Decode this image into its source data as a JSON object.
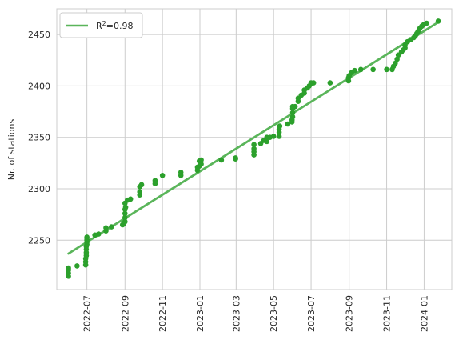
{
  "chart_data": {
    "type": "scatter",
    "title": "",
    "xlabel": "",
    "ylabel": "Nr. of stations",
    "x_axis_type": "date",
    "xlim": [
      "2022-05-13",
      "2024-02-15"
    ],
    "ylim": [
      2202,
      2475
    ],
    "x_ticks": [
      "2022-07",
      "2022-09",
      "2022-11",
      "2023-01",
      "2023-03",
      "2023-05",
      "2023-07",
      "2023-09",
      "2023-11",
      "2024-01"
    ],
    "y_ticks": [
      2250,
      2300,
      2350,
      2400,
      2450
    ],
    "grid": true,
    "legend_position": "top-left",
    "colors": {
      "points": "#2ca02c",
      "fit": "#5ab55a",
      "grid": "#cccccc",
      "axes": "#cccccc"
    },
    "series": [
      {
        "kind": "scatter",
        "x": [
          "2022-06-01",
          "2022-06-01",
          "2022-06-01",
          "2022-06-01",
          "2022-06-15",
          "2022-06-29",
          "2022-06-29",
          "2022-06-29",
          "2022-06-30",
          "2022-06-30",
          "2022-06-30",
          "2022-06-30",
          "2022-07-01",
          "2022-07-01",
          "2022-07-01",
          "2022-07-01",
          "2022-07-01",
          "2022-07-14",
          "2022-07-20",
          "2022-08-01",
          "2022-08-01",
          "2022-08-10",
          "2022-08-28",
          "2022-08-30",
          "2022-09-01",
          "2022-09-01",
          "2022-09-01",
          "2022-09-01",
          "2022-09-01",
          "2022-09-02",
          "2022-09-05",
          "2022-09-10",
          "2022-09-25",
          "2022-09-25",
          "2022-09-25",
          "2022-09-28",
          "2022-10-20",
          "2022-10-20",
          "2022-11-01",
          "2022-12-01",
          "2022-12-01",
          "2022-12-28",
          "2022-12-28",
          "2022-12-31",
          "2022-12-31",
          "2023-01-03",
          "2023-01-03",
          "2023-02-05",
          "2023-02-28",
          "2023-02-28",
          "2023-03-30",
          "2023-03-30",
          "2023-03-30",
          "2023-03-30",
          "2023-04-10",
          "2023-04-15",
          "2023-04-20",
          "2023-04-20",
          "2023-04-25",
          "2023-05-01",
          "2023-05-10",
          "2023-05-10",
          "2023-05-10",
          "2023-05-11",
          "2023-05-24",
          "2023-05-31",
          "2023-05-31",
          "2023-06-01",
          "2023-06-01",
          "2023-06-01",
          "2023-06-01",
          "2023-06-05",
          "2023-06-10",
          "2023-06-10",
          "2023-06-15",
          "2023-06-20",
          "2023-06-20",
          "2023-06-25",
          "2023-06-28",
          "2023-07-01",
          "2023-07-01",
          "2023-07-05",
          "2023-08-01",
          "2023-08-31",
          "2023-08-31",
          "2023-09-01",
          "2023-09-05",
          "2023-09-10",
          "2023-09-20",
          "2023-10-10",
          "2023-11-01",
          "2023-11-10",
          "2023-11-12",
          "2023-11-15",
          "2023-11-18",
          "2023-11-20",
          "2023-11-25",
          "2023-11-28",
          "2023-12-01",
          "2023-12-01",
          "2023-12-05",
          "2023-12-10",
          "2023-12-15",
          "2023-12-18",
          "2023-12-20",
          "2023-12-22",
          "2023-12-25",
          "2023-12-28",
          "2023-12-30",
          "2024-01-01",
          "2024-01-05",
          "2024-01-24"
        ],
        "y": [
          2215,
          2218,
          2221,
          2223,
          2225,
          2226,
          2229,
          2232,
          2235,
          2238,
          2241,
          2244,
          2246,
          2248,
          2250,
          2251,
          2253,
          2255,
          2256,
          2259,
          2262,
          2263,
          2265,
          2266,
          2268,
          2272,
          2276,
          2280,
          2286,
          2282,
          2289,
          2290,
          2294,
          2297,
          2302,
          2304,
          2305,
          2308,
          2313,
          2313,
          2316,
          2318,
          2321,
          2322,
          2327,
          2324,
          2328,
          2328,
          2329,
          2330,
          2333,
          2336,
          2339,
          2343,
          2344,
          2347,
          2350,
          2346,
          2350,
          2351,
          2351,
          2355,
          2358,
          2361,
          2363,
          2365,
          2367,
          2370,
          2374,
          2378,
          2380,
          2380,
          2385,
          2388,
          2391,
          2393,
          2396,
          2398,
          2400,
          2402,
          2403,
          2403,
          2403,
          2405,
          2408,
          2410,
          2413,
          2415,
          2416,
          2416,
          2416,
          2416,
          2419,
          2422,
          2426,
          2430,
          2433,
          2435,
          2437,
          2440,
          2443,
          2445,
          2447,
          2449,
          2451,
          2453,
          2456,
          2458,
          2459,
          2460,
          2461,
          2463
        ]
      },
      {
        "kind": "line",
        "name": "R²=0.98",
        "x": [
          "2022-06-01",
          "2024-01-24"
        ],
        "y": [
          2237,
          2462
        ]
      }
    ]
  }
}
